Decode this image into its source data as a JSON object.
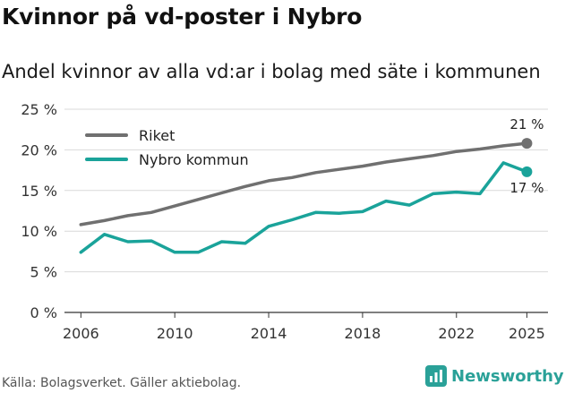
{
  "header": {
    "title": "Kvinnor på vd-poster i Nybro",
    "subtitle": "Andel kvinnor av alla vd:ar i bolag med säte i kommunen"
  },
  "footer": {
    "source": "Källa: Bolagsverket. Gäller aktiebolag.",
    "brand": "Newsworthy"
  },
  "colors": {
    "riket": "#707070",
    "nybro": "#1aa39a",
    "grid": "#d9d9d9",
    "brand": "#2aa198"
  },
  "icons": {
    "brand": "newsworthy-logo-icon"
  },
  "chart_data": {
    "type": "line",
    "title": "Kvinnor på vd-poster i Nybro",
    "subtitle": "Andel kvinnor av alla vd:ar i bolag med säte i kommunen",
    "xlabel": "",
    "ylabel": "",
    "xlim": [
      2005.3,
      2025.9
    ],
    "ylim": [
      0,
      25
    ],
    "grid": true,
    "legend_position": "top-left",
    "x_ticks": [
      2006,
      2010,
      2014,
      2018,
      2022,
      2025
    ],
    "y_ticks": [
      {
        "value": 0,
        "label": "0 %"
      },
      {
        "value": 5,
        "label": "5 %"
      },
      {
        "value": 10,
        "label": "10 %"
      },
      {
        "value": 15,
        "label": "15 %"
      },
      {
        "value": 20,
        "label": "20 %"
      },
      {
        "value": 25,
        "label": "25 %"
      }
    ],
    "x": [
      2006,
      2007,
      2008,
      2009,
      2010,
      2011,
      2012,
      2013,
      2014,
      2015,
      2016,
      2017,
      2018,
      2019,
      2020,
      2021,
      2022,
      2023,
      2024,
      2025
    ],
    "series": [
      {
        "name": "Riket",
        "color": "#707070",
        "values": [
          10.8,
          11.3,
          11.9,
          12.3,
          13.1,
          13.9,
          14.7,
          15.5,
          16.2,
          16.6,
          17.2,
          17.6,
          18.0,
          18.5,
          18.9,
          19.3,
          19.8,
          20.1,
          20.5,
          20.8
        ],
        "end_label": "21 %"
      },
      {
        "name": "Nybro kommun",
        "color": "#1aa39a",
        "values": [
          7.4,
          9.6,
          8.7,
          8.8,
          7.4,
          7.4,
          8.7,
          8.5,
          10.6,
          11.4,
          12.3,
          12.2,
          12.4,
          13.7,
          13.2,
          14.6,
          14.8,
          14.6,
          18.4,
          17.3
        ],
        "end_label": "17 %"
      }
    ]
  }
}
